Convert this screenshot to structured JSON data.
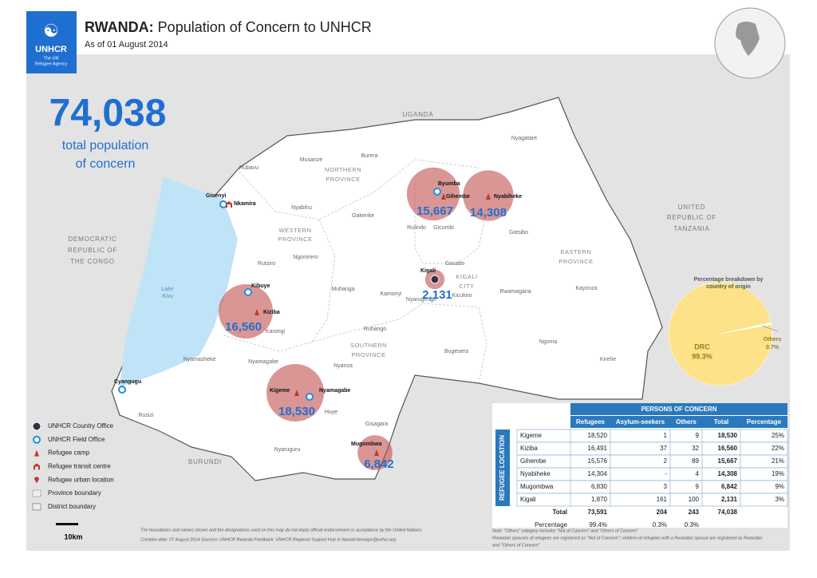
{
  "header": {
    "logo": "UNHCR",
    "logo_sub": [
      "The UN",
      "Refugee Agency"
    ],
    "title_bold": "RWANDA:",
    "title_rest": " Population of Concern to UNHCR",
    "date": "As of 01 August 2014"
  },
  "total": {
    "value": "74,038",
    "caption": [
      "total population",
      "of concern"
    ]
  },
  "map_labels": [
    "UGANDA",
    "DEMOCRATIC",
    "REPUBLIC OF",
    "THE CONGO",
    "UNITED",
    "REPUBLIC OF",
    "TANZANIA",
    "BURUNDI",
    "Lake",
    "Kivu",
    "NORTHERN",
    "PROVINCE",
    "WESTERN",
    "PROVINCE",
    "EASTERN",
    "PROVINCE",
    "KIGALI",
    "CITY",
    "SOUTHERN",
    "PROVINCE",
    "Musanze",
    "Burera",
    "Rubavu",
    "Nyabihu",
    "Gakenke",
    "Rulindo",
    "Gicumbi",
    "Nyagatare",
    "Gatsibo",
    "Rutsiro",
    "Ngororero",
    "Muhanga",
    "Kamonyi",
    "Gasabo",
    "Kicukiro",
    "Nyarugenge",
    "Rwamagana",
    "Kayonza",
    "Karongi",
    "Ruhango",
    "Ngoma",
    "Kirehe",
    "Bugesera",
    "Nyamasheke",
    "Nyamagabe",
    "Nyanza",
    "Huye",
    "Gisagara",
    "Rusizi",
    "Nyaruguru",
    "Gisenyi",
    "Nkamira",
    "Byumba",
    "Gihembe",
    "Nyabiheke",
    "Kigali",
    "Kibuye",
    "Kiziba",
    "Cyangugu",
    "Kigeme",
    "Nyamagabe",
    "Mugombwa"
  ],
  "bubbles": {
    "names": [
      "Gihembe",
      "Nyabiheke",
      "Kigali",
      "Kiziba",
      "Kigeme",
      "Mugombwa"
    ],
    "values": [
      15667,
      14308,
      2131,
      16560,
      18530,
      6842
    ],
    "value_labels": [
      "15,667",
      "14,308",
      "2,131",
      "16,560",
      "18,530",
      "6,842"
    ]
  },
  "legend": [
    "UNHCR Country Office",
    "UNHCR Field Office",
    "Refugee camp",
    "Refugee transit centre",
    "Refugee urban location",
    "Province boundary",
    "District boundary"
  ],
  "scale": "10km",
  "pie": {
    "title": [
      "Percentage breakdown by",
      "country of origin"
    ],
    "labels": [
      "DRC",
      "Others"
    ],
    "values": [
      99.3,
      0.7
    ],
    "value_labels": [
      "99.3%",
      "0.7%"
    ]
  },
  "table": {
    "title": "PERSONS OF CONCERN",
    "side": "REFUGEE LOCATION",
    "columns": [
      "Refugees",
      "Asylum-seekers",
      "Others",
      "Total",
      "Percentage"
    ],
    "rows": [
      [
        "Kigeme",
        "18,520",
        "1",
        "9",
        "18,530",
        "25%"
      ],
      [
        "Kiziba",
        "16,491",
        "37",
        "32",
        "16,560",
        "22%"
      ],
      [
        "Gihembe",
        "15,576",
        "2",
        "89",
        "15,667",
        "21%"
      ],
      [
        "Nyabiheke",
        "14,304",
        "-",
        "4",
        "14,308",
        "19%"
      ],
      [
        "Mugombwa",
        "6,830",
        "3",
        "9",
        "6,842",
        "9%"
      ],
      [
        "Kigali",
        "1,870",
        "161",
        "100",
        "2,131",
        "3%"
      ]
    ],
    "total": [
      "Total",
      "73,591",
      "204",
      "243",
      "74,038"
    ],
    "percentage": [
      "Percentage",
      "99.4%",
      "0.3%",
      "0.3%"
    ],
    "notes": [
      "Note: \"Others\" category includes \"Not of Concern\" and \"Others of Concern\"",
      "Rwandan spouses of refugees are registered as \"Not of Concern\"; children of refugees with a Rwandan spouse are registered as Rwandan",
      "and \"Others of Concern\""
    ]
  },
  "footer": [
    "The boundaries and names shown and the designations used on this map do not imply official endorsement or acceptance by the United Nations.",
    "Creation date: 07 August 2014 Sources: UNHCR Rwanda Feedback: UNHCR Regional Support Hub in Nairobi kenaigis@unhcr.org"
  ]
}
